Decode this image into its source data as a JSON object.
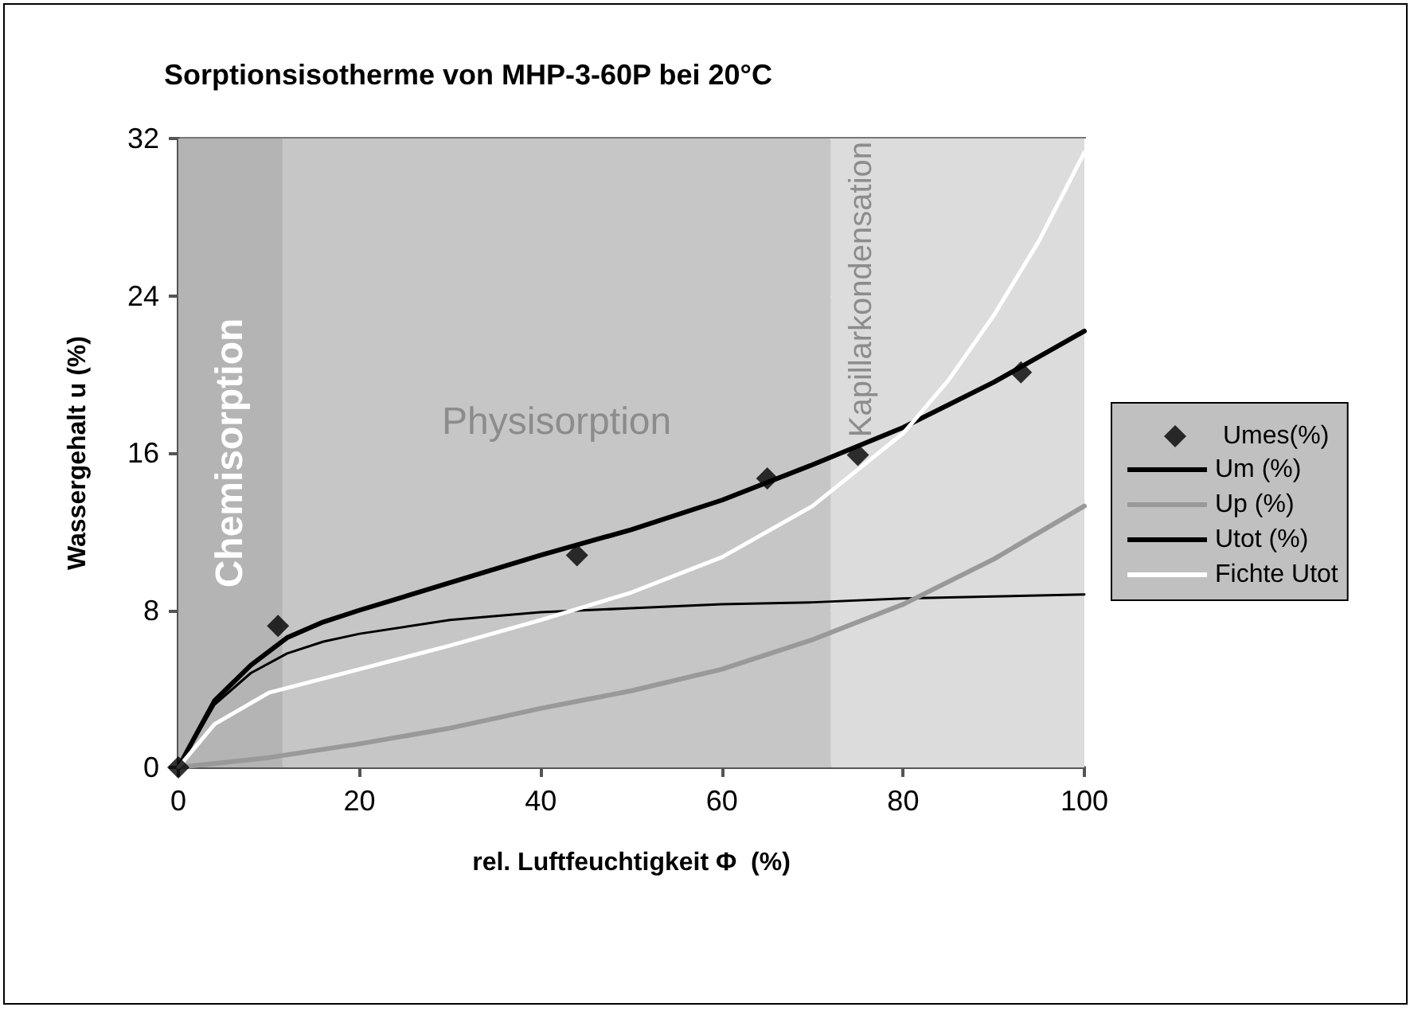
{
  "chart_data": {
    "type": "line",
    "title": "Sorptionsisotherme von MHP-3-60P bei 20°C",
    "xlabel": "rel. Luftfeuchtigkeit Φ  (%)",
    "ylabel": "Wassergehalt u (%)",
    "xlim": [
      0,
      100
    ],
    "xticks": [
      0,
      20,
      40,
      60,
      80,
      100
    ],
    "ylim": [
      0,
      32
    ],
    "yticks": [
      0,
      8,
      16,
      24,
      32
    ],
    "grid": true,
    "legend": "right",
    "bands": [
      {
        "axis": "x",
        "from": 0,
        "to": 11.5,
        "label": "Chemisorption",
        "color": "#b4b4b4"
      },
      {
        "axis": "x",
        "from": 11.5,
        "to": 72,
        "label": "Physisorption",
        "color": "#c6c6c6"
      },
      {
        "axis": "x",
        "from": 72,
        "to": 100,
        "label": "Kapillarkondensation",
        "color": "#dcdcdc"
      }
    ],
    "series": [
      {
        "name": "Umes(%)",
        "type": "scatter",
        "marker": "diamond",
        "color": "#000000",
        "x": [
          0,
          11,
          44,
          65,
          75,
          93
        ],
        "values": [
          0,
          7.2,
          10.8,
          14.7,
          15.9,
          20.1
        ]
      },
      {
        "name": "Um (%)",
        "color": "#000000",
        "x": [
          0,
          4,
          8,
          12,
          16,
          20,
          30,
          40,
          50,
          60,
          70,
          80,
          90,
          100
        ],
        "values": [
          0,
          3.2,
          4.8,
          5.8,
          6.4,
          6.8,
          7.5,
          7.9,
          8.1,
          8.3,
          8.4,
          8.6,
          8.7,
          8.8
        ]
      },
      {
        "name": "Up (%)",
        "color": "#999999",
        "x": [
          0,
          10,
          20,
          30,
          40,
          50,
          60,
          70,
          80,
          90,
          100
        ],
        "values": [
          0,
          0.5,
          1.2,
          2.0,
          3.0,
          3.9,
          5.0,
          6.5,
          8.3,
          10.6,
          13.3
        ]
      },
      {
        "name": "Utot (%)",
        "color": "#000000",
        "x": [
          0,
          4,
          8,
          12,
          16,
          20,
          30,
          40,
          50,
          60,
          70,
          80,
          90,
          100
        ],
        "values": [
          0,
          3.4,
          5.2,
          6.6,
          7.4,
          8.0,
          9.4,
          10.8,
          12.1,
          13.6,
          15.4,
          17.3,
          19.6,
          22.2
        ]
      },
      {
        "name": "Fichte Utot",
        "color": "#ffffff",
        "x": [
          0,
          4,
          10,
          20,
          30,
          40,
          50,
          60,
          70,
          80,
          85,
          90,
          95,
          100
        ],
        "values": [
          0,
          2.2,
          3.8,
          5.0,
          6.2,
          7.5,
          8.9,
          10.7,
          13.3,
          17.0,
          19.7,
          23.0,
          26.8,
          31.3
        ]
      }
    ]
  }
}
